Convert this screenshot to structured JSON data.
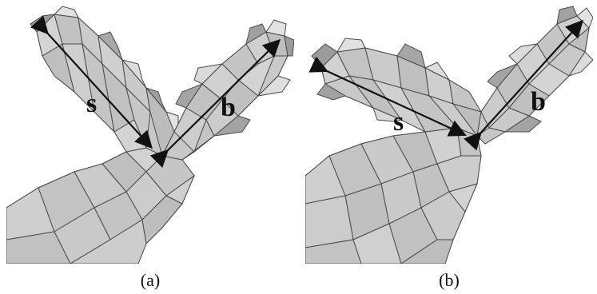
{
  "figure": {
    "panels": [
      {
        "id": "a",
        "caption": "(a)",
        "labels": {
          "s": "s",
          "b": "b"
        }
      },
      {
        "id": "b",
        "caption": "(b)",
        "labels": {
          "s": "s",
          "b": "b"
        }
      }
    ]
  },
  "colors": {
    "mesh_fill": "#c8c8c8",
    "mesh_edge": "#4a4a4a",
    "mesh_dark": "#7a7a7a",
    "arrow": "#111111",
    "background": "#ffffff"
  }
}
